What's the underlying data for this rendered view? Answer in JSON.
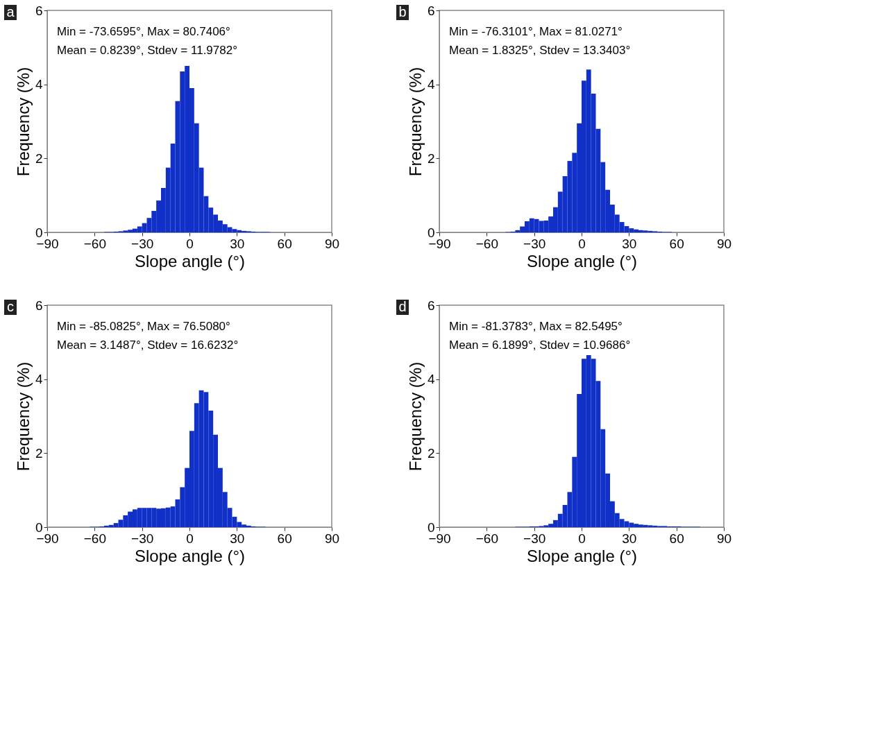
{
  "chart_data": [
    {
      "type": "histogram",
      "color": "#1030c8",
      "xlabel": "Slope angle (°)",
      "ylabel": "Frequency (%)",
      "xlim": [
        -90,
        90
      ],
      "ylim": [
        0,
        6
      ],
      "xticks": [
        -90,
        -60,
        -30,
        0,
        30,
        60,
        90
      ],
      "yticks": [
        0,
        2,
        4,
        6
      ],
      "grid": false,
      "annotations": [
        "a",
        "Min  = -73.6595°,  Max  =  80.7406°",
        "Mean = 0.8239°, Stdev = 11.9782°"
      ],
      "bins": [
        -54,
        -51,
        -48,
        -45,
        -42,
        -39,
        -36,
        -33,
        -30,
        -27,
        -24,
        -21,
        -18,
        -15,
        -12,
        -9,
        -6,
        -3,
        0,
        3,
        6,
        9,
        12,
        15,
        18,
        21,
        24,
        27,
        30,
        33,
        36,
        39,
        42,
        45,
        48,
        51
      ],
      "values": [
        0.01,
        0.01,
        0.02,
        0.03,
        0.05,
        0.07,
        0.1,
        0.16,
        0.25,
        0.39,
        0.58,
        0.86,
        1.2,
        1.75,
        2.4,
        3.55,
        4.35,
        4.5,
        3.9,
        2.95,
        1.75,
        0.98,
        0.67,
        0.48,
        0.32,
        0.22,
        0.14,
        0.09,
        0.06,
        0.04,
        0.03,
        0.02,
        0.01,
        0.01,
        0.01
      ]
    },
    {
      "type": "histogram",
      "color": "#1030c8",
      "xlabel": "Slope angle (°)",
      "ylabel": "Frequency (%)",
      "xlim": [
        -90,
        90
      ],
      "ylim": [
        0,
        6
      ],
      "xticks": [
        -90,
        -60,
        -30,
        0,
        30,
        60,
        90
      ],
      "yticks": [
        0,
        2,
        4,
        6
      ],
      "grid": false,
      "annotations": [
        "b",
        "Min  = -76.3101°,  Max  =  81.0271°",
        "Mean = 1.8325°, Stdev = 13.3403°"
      ],
      "bins": [
        -48,
        -45,
        -42,
        -39,
        -36,
        -33,
        -30,
        -27,
        -24,
        -21,
        -18,
        -15,
        -12,
        -9,
        -6,
        -3,
        0,
        3,
        6,
        9,
        12,
        15,
        18,
        21,
        24,
        27,
        30,
        33,
        36,
        39,
        42,
        45,
        48,
        51,
        54,
        57
      ],
      "values": [
        0.01,
        0.02,
        0.06,
        0.16,
        0.3,
        0.38,
        0.36,
        0.31,
        0.32,
        0.43,
        0.68,
        1.1,
        1.52,
        1.93,
        2.15,
        2.95,
        4.1,
        4.4,
        3.75,
        2.8,
        1.9,
        1.15,
        0.75,
        0.48,
        0.28,
        0.17,
        0.11,
        0.08,
        0.06,
        0.05,
        0.04,
        0.03,
        0.02,
        0.01,
        0.01
      ]
    },
    {
      "type": "histogram",
      "color": "#1030c8",
      "xlabel": "Slope angle (°)",
      "ylabel": "Frequency (%)",
      "xlim": [
        -90,
        90
      ],
      "ylim": [
        0,
        6
      ],
      "xticks": [
        -90,
        -60,
        -30,
        0,
        30,
        60,
        90
      ],
      "yticks": [
        0,
        2,
        4,
        6
      ],
      "grid": false,
      "annotations": [
        "c",
        "Min  = -85.0825°,  Max  =  76.5080°",
        "Mean = 3.1487°, Stdev = 16.6232°"
      ],
      "bins": [
        -63,
        -60,
        -57,
        -54,
        -51,
        -48,
        -45,
        -42,
        -39,
        -36,
        -33,
        -30,
        -27,
        -24,
        -21,
        -18,
        -15,
        -12,
        -9,
        -6,
        -3,
        0,
        3,
        6,
        9,
        12,
        15,
        18,
        21,
        24,
        27,
        30,
        33,
        36,
        39,
        42,
        45,
        48
      ],
      "values": [
        0.01,
        0.01,
        0.02,
        0.04,
        0.06,
        0.11,
        0.2,
        0.32,
        0.42,
        0.48,
        0.52,
        0.52,
        0.52,
        0.52,
        0.5,
        0.51,
        0.53,
        0.56,
        0.75,
        1.08,
        1.6,
        2.6,
        3.35,
        3.7,
        3.65,
        3.15,
        2.5,
        1.6,
        0.95,
        0.52,
        0.28,
        0.14,
        0.07,
        0.04,
        0.02,
        0.01,
        0.01
      ]
    },
    {
      "type": "histogram",
      "color": "#1030c8",
      "xlabel": "Slope angle (°)",
      "ylabel": "Frequency (%)",
      "xlim": [
        -90,
        90
      ],
      "ylim": [
        0,
        6
      ],
      "xticks": [
        -90,
        -60,
        -30,
        0,
        30,
        60,
        90
      ],
      "yticks": [
        0,
        2,
        4,
        6
      ],
      "grid": false,
      "annotations": [
        "d",
        "Min  = -81.3783°,  Max  =  82.5495°",
        "Mean = 6.1899°, Stdev = 10.9686°"
      ],
      "bins": [
        -42,
        -39,
        -36,
        -33,
        -30,
        -27,
        -24,
        -21,
        -18,
        -15,
        -12,
        -9,
        -6,
        -3,
        0,
        3,
        6,
        9,
        12,
        15,
        18,
        21,
        24,
        27,
        30,
        33,
        36,
        39,
        42,
        45,
        48,
        51,
        54,
        57,
        60,
        63,
        66,
        69,
        72,
        75
      ],
      "values": [
        0.01,
        0.01,
        0.01,
        0.02,
        0.02,
        0.03,
        0.05,
        0.09,
        0.19,
        0.36,
        0.6,
        0.95,
        1.9,
        3.6,
        4.55,
        4.65,
        4.55,
        3.95,
        2.65,
        1.45,
        0.7,
        0.38,
        0.22,
        0.16,
        0.12,
        0.09,
        0.07,
        0.06,
        0.05,
        0.04,
        0.03,
        0.03,
        0.02,
        0.02,
        0.02,
        0.01,
        0.01,
        0.01,
        0.01
      ]
    }
  ]
}
